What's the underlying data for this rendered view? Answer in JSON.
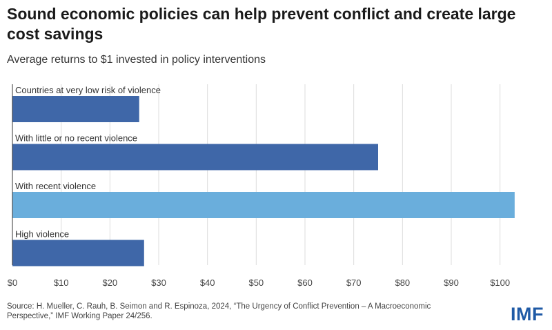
{
  "header": {
    "title": "Sound economic policies can help prevent conflict and create large cost savings",
    "subtitle": "Average returns to $1 invested in policy interventions"
  },
  "footer": {
    "source": "Source: H. Mueller, C. Rauh, B. Seimon and R. Espinoza, 2024, “The Urgency of Conflict Prevention – A Macroeconomic Perspective,” IMF Working Paper 24/256.",
    "logo": "IMF"
  },
  "chart_data": {
    "type": "bar",
    "orientation": "horizontal",
    "categories": [
      "Countries at very low risk of violence",
      "With little or no recent violence",
      "With recent violence",
      "High violence"
    ],
    "values": [
      26,
      75,
      103,
      27
    ],
    "colors": [
      "#3f67a8",
      "#3f67a8",
      "#6aaedc",
      "#3f67a8"
    ],
    "xlim": [
      0,
      105
    ],
    "xticks": [
      "$0",
      "$10",
      "$20",
      "$30",
      "$40",
      "$50",
      "$60",
      "$70",
      "$80",
      "$90",
      "$100"
    ],
    "grid": true
  }
}
